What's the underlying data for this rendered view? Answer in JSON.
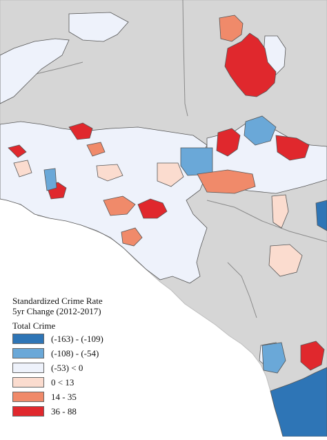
{
  "legend": {
    "title_line1": "Standardized Crime Rate",
    "title_line2": "5yr Change (2012-2017)",
    "subtitle": "Total Crime",
    "classes": [
      {
        "label": "(-163) - (-109)",
        "color": "#2e75b6"
      },
      {
        "label": "(-108) - (-54)",
        "color": "#6aa8d8"
      },
      {
        "label": "(-53) < 0",
        "color": "#eef2fb"
      },
      {
        "label": "0 < 13",
        "color": "#fbdccf"
      },
      {
        "label": "14 - 35",
        "color": "#f08a6a"
      },
      {
        "label": "36 - 88",
        "color": "#e0282d"
      }
    ]
  },
  "colors": {
    "land": "#d6d6d6",
    "ocean": "#ffffff",
    "boundary": "#8a8a8a"
  }
}
